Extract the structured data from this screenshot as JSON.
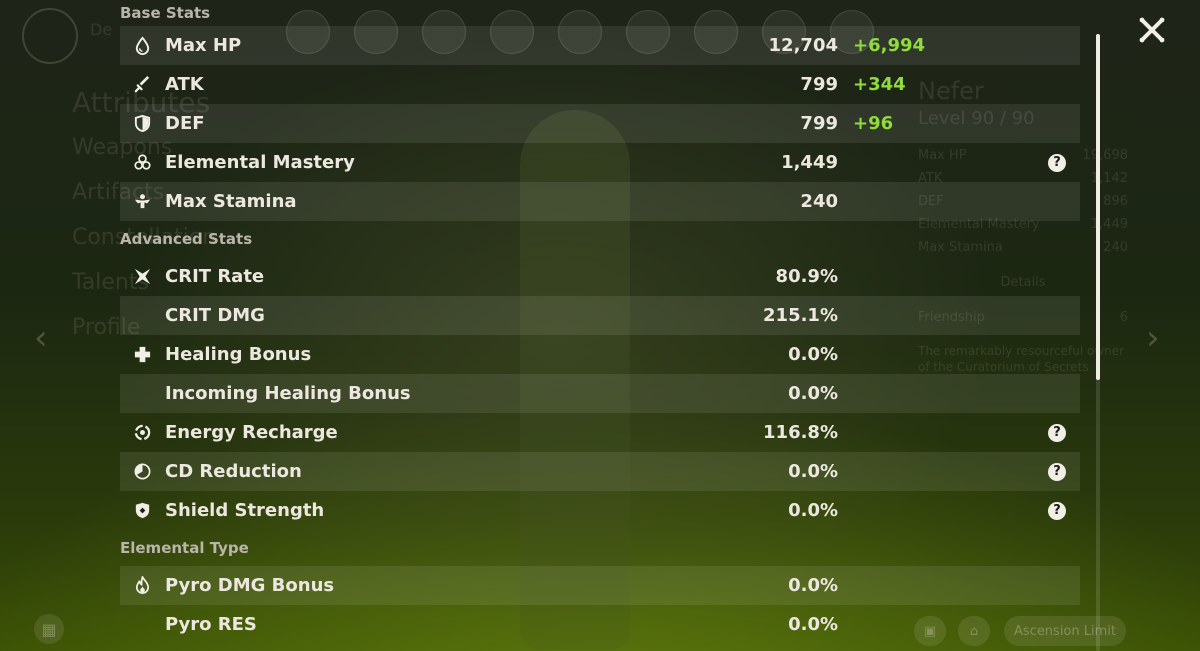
{
  "background": {
    "header_title": "De",
    "nav_items": [
      "Attributes",
      "Weapons",
      "Artifacts",
      "Constellation",
      "Talents",
      "Profile"
    ],
    "character": {
      "name": "Nefer",
      "level": "Level 90 / 90",
      "stats": [
        {
          "label": "Max HP",
          "value": "19,698"
        },
        {
          "label": "ATK",
          "value": "1,142"
        },
        {
          "label": "DEF",
          "value": "896"
        },
        {
          "label": "Elemental Mastery",
          "value": "1,449"
        },
        {
          "label": "Max Stamina",
          "value": "240"
        }
      ],
      "details_label": "Details",
      "friendship_label": "Friendship",
      "friendship_value": "6",
      "description": "The remarkably resourceful owner of the Curatorium of Secrets"
    },
    "ascension_label": "Ascension Limit"
  },
  "sections": [
    {
      "title": "Base Stats",
      "rows": [
        {
          "icon": "hp-drop-icon",
          "label": "Max HP",
          "value": "12,704",
          "bonus": "+6,994",
          "help": false,
          "shaded": true
        },
        {
          "icon": "sword-icon",
          "label": "ATK",
          "value": "799",
          "bonus": "+344",
          "help": false,
          "shaded": false
        },
        {
          "icon": "shield-half-icon",
          "label": "DEF",
          "value": "799",
          "bonus": "+96",
          "help": false,
          "shaded": true
        },
        {
          "icon": "elemental-mastery-icon",
          "label": "Elemental Mastery",
          "value": "1,449",
          "bonus": "",
          "help": true,
          "shaded": false
        },
        {
          "icon": "stamina-icon",
          "label": "Max Stamina",
          "value": "240",
          "bonus": "",
          "help": false,
          "shaded": true
        }
      ]
    },
    {
      "title": "Advanced Stats",
      "rows": [
        {
          "icon": "crit-rate-icon",
          "label": "CRIT Rate",
          "value": "80.9%",
          "bonus": "",
          "help": false,
          "shaded": false
        },
        {
          "icon": "",
          "label": "CRIT DMG",
          "value": "215.1%",
          "bonus": "",
          "help": false,
          "shaded": true
        },
        {
          "icon": "healing-cross-icon",
          "label": "Healing Bonus",
          "value": "0.0%",
          "bonus": "",
          "help": false,
          "shaded": false
        },
        {
          "icon": "",
          "label": "Incoming Healing Bonus",
          "value": "0.0%",
          "bonus": "",
          "help": false,
          "shaded": true
        },
        {
          "icon": "energy-recharge-icon",
          "label": "Energy Recharge",
          "value": "116.8%",
          "bonus": "",
          "help": true,
          "shaded": false
        },
        {
          "icon": "cd-reduction-icon",
          "label": "CD Reduction",
          "value": "0.0%",
          "bonus": "",
          "help": true,
          "shaded": true
        },
        {
          "icon": "shield-strength-icon",
          "label": "Shield Strength",
          "value": "0.0%",
          "bonus": "",
          "help": true,
          "shaded": false
        }
      ]
    },
    {
      "title": "Elemental Type",
      "rows": [
        {
          "icon": "pyro-icon",
          "label": "Pyro DMG Bonus",
          "value": "0.0%",
          "bonus": "",
          "help": false,
          "shaded": true
        },
        {
          "icon": "",
          "label": "Pyro RES",
          "value": "0.0%",
          "bonus": "",
          "help": false,
          "shaded": false
        }
      ]
    }
  ],
  "help_glyph": "?",
  "colors": {
    "bonus": "#8fdc3c",
    "text": "#ece8df",
    "header": "#b9b5ab"
  },
  "scroll": {
    "position_fraction": 0.0,
    "visible_fraction": 0.56
  }
}
